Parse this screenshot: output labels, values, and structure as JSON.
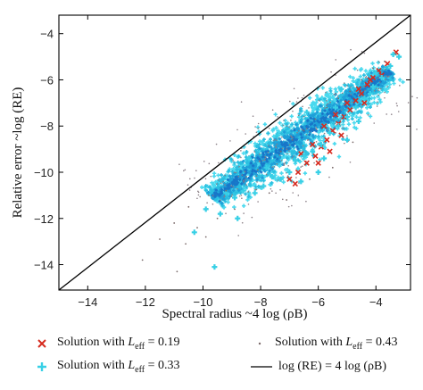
{
  "chart_data": {
    "type": "scatter",
    "xlabel": "Spectral radius ~4 log (ρB)",
    "ylabel": "Relative error ~log (RE)",
    "xlim": [
      -15,
      -2.8
    ],
    "ylim": [
      -15.1,
      -3.2
    ],
    "xticks": [
      -14,
      -12,
      -10,
      -8,
      -6,
      -4
    ],
    "yticks": [
      -14,
      -12,
      -10,
      -8,
      -6,
      -4
    ],
    "xtick_labels": [
      "−14",
      "−12",
      "−10",
      "−8",
      "−6",
      "−4"
    ],
    "ytick_labels": [
      "−14",
      "−12",
      "−10",
      "−8",
      "−6",
      "−4"
    ],
    "grid": false,
    "legend_position": "below",
    "series": [
      {
        "name": "Solution with Leff = 0.19",
        "marker": "x",
        "color": "#d62a1e",
        "points": [
          [
            -3.3,
            -4.8
          ],
          [
            -3.6,
            -5.3
          ],
          [
            -3.9,
            -5.6
          ],
          [
            -4.1,
            -5.9
          ],
          [
            -4.3,
            -6.2
          ],
          [
            -4.5,
            -6.6
          ],
          [
            -4.7,
            -6.9
          ],
          [
            -4.9,
            -7.3
          ],
          [
            -5.1,
            -7.6
          ],
          [
            -5.3,
            -7.9
          ],
          [
            -5.5,
            -8.2
          ],
          [
            -5.7,
            -8.6
          ],
          [
            -5.9,
            -8.9
          ],
          [
            -6.1,
            -9.3
          ],
          [
            -6.4,
            -9.6
          ],
          [
            -6.7,
            -10.0
          ],
          [
            -7.0,
            -10.3
          ],
          [
            -4.2,
            -6.0
          ],
          [
            -4.6,
            -6.4
          ],
          [
            -5.0,
            -7.0
          ],
          [
            -5.4,
            -7.5
          ],
          [
            -5.8,
            -8.0
          ],
          [
            -6.2,
            -8.8
          ],
          [
            -6.6,
            -9.2
          ],
          [
            -3.8,
            -5.8
          ],
          [
            -4.4,
            -7.0
          ],
          [
            -5.2,
            -8.4
          ],
          [
            -6.0,
            -9.6
          ],
          [
            -6.8,
            -10.5
          ],
          [
            -5.6,
            -9.1
          ]
        ]
      },
      {
        "name": "Solution with Leff = 0.33",
        "marker": "+",
        "color": "#38d0e6",
        "points": [
          [
            -9.6,
            -14.1
          ],
          [
            -10.3,
            -12.6
          ],
          [
            -9.9,
            -11.6
          ],
          [
            -9.4,
            -11.8
          ],
          [
            -8.9,
            -11.1
          ],
          [
            -8.6,
            -10.8
          ],
          [
            -8.2,
            -10.9
          ],
          [
            -7.9,
            -10.6
          ],
          [
            -7.6,
            -10.2
          ],
          [
            -7.3,
            -10.3
          ],
          [
            -7.0,
            -10.0
          ],
          [
            -6.8,
            -9.5
          ],
          [
            -6.5,
            -9.3
          ],
          [
            -6.2,
            -9.1
          ],
          [
            -5.9,
            -8.8
          ],
          [
            -5.6,
            -8.3
          ],
          [
            -5.3,
            -8.0
          ],
          [
            -5.0,
            -7.6
          ],
          [
            -4.7,
            -7.2
          ],
          [
            -4.4,
            -6.8
          ],
          [
            -4.1,
            -6.3
          ],
          [
            -3.8,
            -5.9
          ],
          [
            -3.5,
            -5.4
          ],
          [
            -3.2,
            -5.0
          ],
          [
            -4.0,
            -5.7
          ],
          [
            -5.2,
            -6.4
          ],
          [
            -6.4,
            -7.4
          ],
          [
            -7.4,
            -8.4
          ],
          [
            -8.4,
            -9.4
          ],
          [
            -6.0,
            -10.0
          ],
          [
            -5.0,
            -8.6
          ],
          [
            -4.6,
            -7.8
          ],
          [
            -7.8,
            -9.8
          ],
          [
            -9.2,
            -10.9
          ],
          [
            -8.8,
            -12.0
          ],
          [
            -3.4,
            -4.9
          ],
          [
            -4.2,
            -6.6
          ],
          [
            -5.8,
            -9.4
          ],
          [
            -6.6,
            -10.4
          ],
          [
            -5.4,
            -7.2
          ]
        ]
      },
      {
        "name": "Solution with Leff = 0.43",
        "marker": "dot",
        "color": "#7a6a6a",
        "points": [
          [
            -12.1,
            -13.8
          ],
          [
            -11.5,
            -12.9
          ],
          [
            -11.0,
            -12.2
          ],
          [
            -10.9,
            -14.3
          ],
          [
            -10.5,
            -11.5
          ],
          [
            -10.2,
            -12.4
          ],
          [
            -9.8,
            -11.0
          ],
          [
            -9.5,
            -12.0
          ],
          [
            -9.2,
            -10.8
          ],
          [
            -8.9,
            -11.6
          ],
          [
            -8.5,
            -10.2
          ],
          [
            -8.1,
            -9.9
          ],
          [
            -7.7,
            -10.9
          ],
          [
            -7.3,
            -9.1
          ],
          [
            -6.9,
            -8.6
          ],
          [
            -6.5,
            -8.2
          ],
          [
            -6.1,
            -7.7
          ],
          [
            -5.7,
            -7.2
          ],
          [
            -5.3,
            -6.8
          ],
          [
            -4.9,
            -6.5
          ],
          [
            -4.5,
            -6.0
          ],
          [
            -4.1,
            -5.5
          ],
          [
            -3.7,
            -5.2
          ],
          [
            -3.3,
            -4.9
          ],
          [
            -5.5,
            -9.8
          ],
          [
            -6.3,
            -10.3
          ],
          [
            -7.1,
            -11.2
          ],
          [
            -4.8,
            -8.7
          ],
          [
            -9.9,
            -12.8
          ],
          [
            -10.6,
            -13.1
          ]
        ]
      },
      {
        "name": "log (RE) = 4 log (ρB)",
        "type": "line",
        "color": "#000000",
        "x": [
          -15,
          -2.8
        ],
        "y": [
          -15.1,
          -3.2
        ]
      }
    ],
    "cloud": {
      "description_ellipse": "dense cloud",
      "center": [
        -6.6,
        -8.6
      ],
      "main_axis_start": [
        -10.0,
        -11.4
      ],
      "main_axis_end": [
        -3.5,
        -5.6
      ],
      "half_width": 0.75
    }
  },
  "legend": {
    "items": [
      {
        "id": "leff019",
        "prefix": "Solution with ",
        "sym": "L",
        "sub": "eff",
        "suffix": " = 0.19"
      },
      {
        "id": "leff043",
        "prefix": "Solution with ",
        "sym": "L",
        "sub": "eff",
        "suffix": " = 0.43"
      },
      {
        "id": "leff033",
        "prefix": "Solution with ",
        "sym": "L",
        "sub": "eff",
        "suffix": " = 0.33"
      },
      {
        "id": "lineref",
        "text": "log (RE) = 4 log (ρB)"
      }
    ]
  }
}
